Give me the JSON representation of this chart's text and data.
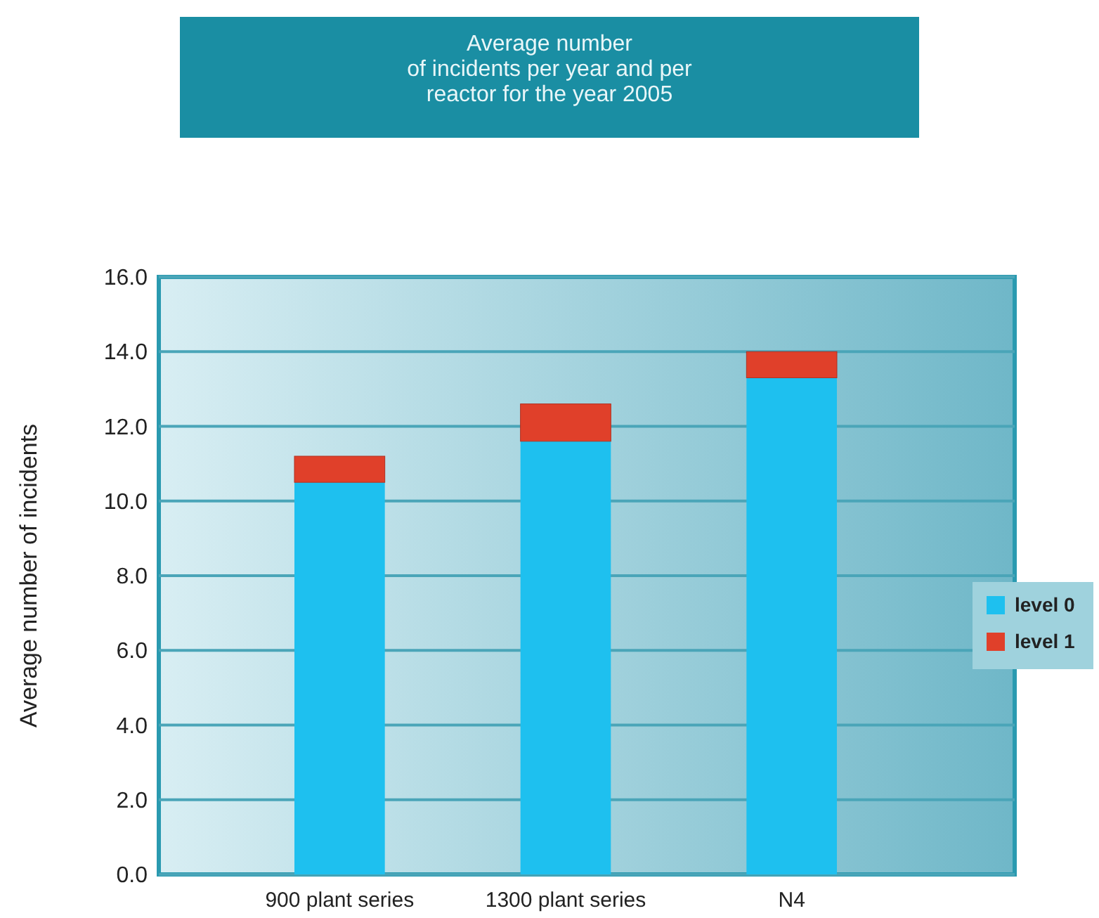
{
  "chart_data": {
    "type": "bar",
    "title": "Average number\nof incidents per year and per\nreactor for the year 2005",
    "ylabel": "Average number of incidents",
    "categories": [
      "900 plant series",
      "1300 plant series",
      "N4"
    ],
    "series": [
      {
        "name": "level 0",
        "color": "#1ec0ef",
        "values": [
          10.5,
          11.6,
          13.3
        ]
      },
      {
        "name": "level 1",
        "color": "#e0402a",
        "values": [
          0.7,
          1.0,
          0.7
        ]
      }
    ],
    "stacked": true,
    "ylim": [
      0,
      16
    ],
    "yticks": [
      {
        "value": 0,
        "label": "0.0"
      },
      {
        "value": 2,
        "label": "2.0"
      },
      {
        "value": 4,
        "label": "4.0"
      },
      {
        "value": 6,
        "label": "6.0"
      },
      {
        "value": 8,
        "label": "8.0"
      },
      {
        "value": 10,
        "label": "10.0"
      },
      {
        "value": 12,
        "label": "12.0"
      },
      {
        "value": 14,
        "label": "14.0"
      },
      {
        "value": 16,
        "label": "16.0"
      }
    ],
    "grid": "y",
    "legend": "right"
  }
}
